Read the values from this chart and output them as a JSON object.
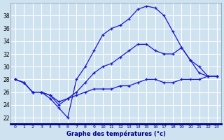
{
  "title": "Graphe des températures (°c)",
  "bg_color": "#cfe2f0",
  "grid_color": "#ffffff",
  "line_color": "#1a1acc",
  "xlim": [
    -0.5,
    23.5
  ],
  "ylim": [
    21,
    40
  ],
  "yticks": [
    22,
    24,
    26,
    28,
    30,
    32,
    34,
    36,
    38
  ],
  "xticks": [
    0,
    1,
    2,
    3,
    4,
    5,
    6,
    7,
    8,
    9,
    10,
    11,
    12,
    13,
    14,
    15,
    16,
    17,
    18,
    19,
    20,
    21,
    22,
    23
  ],
  "line1_x": [
    0,
    1,
    2,
    3,
    4,
    5,
    6,
    7,
    8,
    9,
    10,
    11,
    12,
    13,
    14,
    15,
    16,
    17,
    18,
    19,
    20,
    21,
    22,
    23
  ],
  "line1_y": [
    28,
    27.5,
    26,
    26,
    25,
    23.5,
    22,
    28.0,
    30,
    32.5,
    35,
    36,
    36.5,
    37.5,
    39,
    39.5,
    39.2,
    38,
    35.5,
    33,
    31,
    29,
    28.5,
    28.5
  ],
  "line2_x": [
    0,
    1,
    2,
    3,
    4,
    5,
    6,
    7,
    8,
    9,
    10,
    11,
    12,
    13,
    14,
    15,
    16,
    17,
    18,
    19,
    20,
    21,
    22,
    23
  ],
  "line2_y": [
    28,
    27.5,
    26,
    26,
    25.5,
    24,
    25,
    26,
    27.5,
    29,
    30,
    30.5,
    31.5,
    32.5,
    33.5,
    33.5,
    32.5,
    32,
    32,
    33,
    31,
    30,
    28.5,
    28.5
  ],
  "line3_x": [
    0,
    1,
    2,
    3,
    4,
    5,
    6,
    7,
    8,
    9,
    10,
    11,
    12,
    13,
    14,
    15,
    16,
    17,
    18,
    19,
    20,
    21,
    22,
    23
  ],
  "line3_y": [
    28,
    27.5,
    26,
    26,
    25.5,
    24.5,
    25,
    25.5,
    26,
    26.5,
    26.5,
    26.5,
    27,
    27,
    27.5,
    28,
    28,
    27.5,
    27.5,
    28,
    28,
    28,
    28.5,
    28.5
  ]
}
